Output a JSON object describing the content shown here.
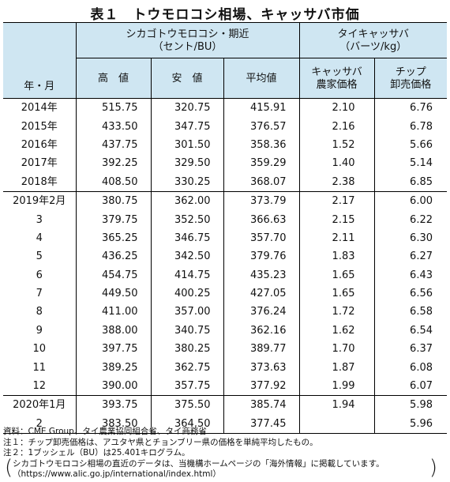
{
  "title": "表１　トウモロコシ相場、キャッサバ市価",
  "table": {
    "header": {
      "period": "年・月",
      "group1_line1": "シカゴトウモロコシ・期近",
      "group1_line2": "（セント/BU）",
      "group2_line1": "タイキャッサバ",
      "group2_line2": "（バーツ/kg）",
      "high": "高　値",
      "low": "安　値",
      "avg": "平均値",
      "farm_price_line1": "キャッサバ",
      "farm_price_line2": "農家価格",
      "chip_price_line1": "チップ",
      "chip_price_line2": "卸売価格"
    },
    "rows": [
      {
        "period": "2014年",
        "high": "515.75",
        "low": "320.75",
        "avg": "415.91",
        "farm": "2.10",
        "chip": "6.76"
      },
      {
        "period": "2015年",
        "high": "433.50",
        "low": "347.75",
        "avg": "376.57",
        "farm": "2.16",
        "chip": "6.78"
      },
      {
        "period": "2016年",
        "high": "437.75",
        "low": "301.50",
        "avg": "358.36",
        "farm": "1.52",
        "chip": "5.66"
      },
      {
        "period": "2017年",
        "high": "392.25",
        "low": "329.50",
        "avg": "359.29",
        "farm": "1.40",
        "chip": "5.14"
      },
      {
        "period": "2018年",
        "high": "408.50",
        "low": "330.25",
        "avg": "368.07",
        "farm": "2.38",
        "chip": "6.85"
      },
      {
        "period": "2019年2月",
        "high": "380.75",
        "low": "362.00",
        "avg": "373.79",
        "farm": "2.17",
        "chip": "6.00"
      },
      {
        "period": "3",
        "high": "379.75",
        "low": "352.50",
        "avg": "366.63",
        "farm": "2.15",
        "chip": "6.22"
      },
      {
        "period": "4",
        "high": "365.25",
        "low": "346.75",
        "avg": "357.70",
        "farm": "2.11",
        "chip": "6.30"
      },
      {
        "period": "5",
        "high": "436.25",
        "low": "342.50",
        "avg": "379.76",
        "farm": "1.83",
        "chip": "6.27"
      },
      {
        "period": "6",
        "high": "454.75",
        "low": "414.75",
        "avg": "435.23",
        "farm": "1.65",
        "chip": "6.43"
      },
      {
        "period": "7",
        "high": "449.50",
        "low": "400.25",
        "avg": "427.05",
        "farm": "1.65",
        "chip": "6.56"
      },
      {
        "period": "8",
        "high": "411.00",
        "low": "357.00",
        "avg": "376.24",
        "farm": "1.72",
        "chip": "6.58"
      },
      {
        "period": "9",
        "high": "388.00",
        "low": "340.75",
        "avg": "362.16",
        "farm": "1.62",
        "chip": "6.54"
      },
      {
        "period": "10",
        "high": "397.75",
        "low": "380.25",
        "avg": "389.77",
        "farm": "1.70",
        "chip": "6.37"
      },
      {
        "period": "11",
        "high": "389.25",
        "low": "362.75",
        "avg": "373.63",
        "farm": "1.87",
        "chip": "6.08"
      },
      {
        "period": "12",
        "high": "390.00",
        "low": "357.75",
        "avg": "377.92",
        "farm": "1.99",
        "chip": "6.07"
      },
      {
        "period": "2020年1月",
        "high": "393.75",
        "low": "375.50",
        "avg": "385.74",
        "farm": "1.94",
        "chip": "5.98"
      },
      {
        "period": "2",
        "high": "383.50",
        "low": "364.50",
        "avg": "377.45",
        "farm": "",
        "chip": "5.96"
      }
    ]
  },
  "notes": {
    "source": "資料：CME Group、タイ農業協同組合省、タイ商務省",
    "note1": "注１：チップ卸売価格は、アユタヤ県とチョンブリー県の価格を単純平均したもの。",
    "note2": "注２：1ブッシェル（BU）は25.401キログラム。",
    "link_line1": "シカゴトウモロコシ相場の直近のデータは、当機構ホームページの「海外情報」に掲載しています。",
    "link_line2": "（https://www.alic.go.jp/international/index.html）"
  }
}
